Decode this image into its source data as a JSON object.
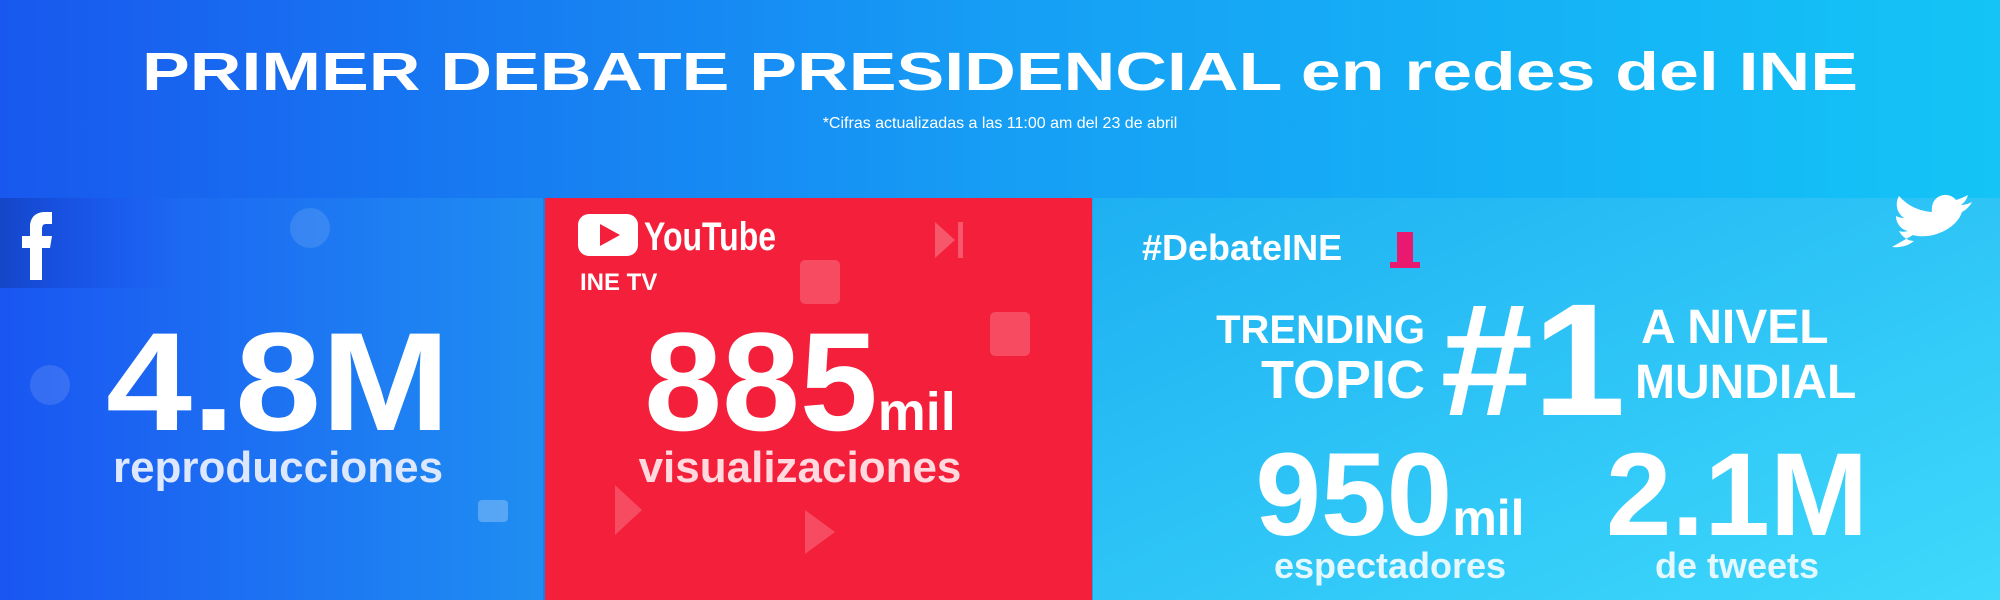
{
  "header": {
    "title": "PRIMER DEBATE PRESIDENCIAL en redes del INE",
    "note": "*Cifras actualizadas a las 11:00 am del 23 de abril"
  },
  "facebook": {
    "value": "4.8M",
    "label": "reproducciones"
  },
  "youtube": {
    "logo": "YouTube",
    "channel": "INE TV",
    "value": "885",
    "unit": "mil",
    "label": "visualizaciones"
  },
  "twitter": {
    "hashtag": "#DebateINE",
    "trending": [
      "TRENDING",
      "TOPIC"
    ],
    "rank": "#1",
    "scope": [
      "A NIVEL",
      "MUNDIAL"
    ],
    "stats": [
      {
        "value": "950",
        "unit": "mil",
        "label": "espectadores"
      },
      {
        "value": "2.1M",
        "label": "de tweets"
      }
    ]
  }
}
